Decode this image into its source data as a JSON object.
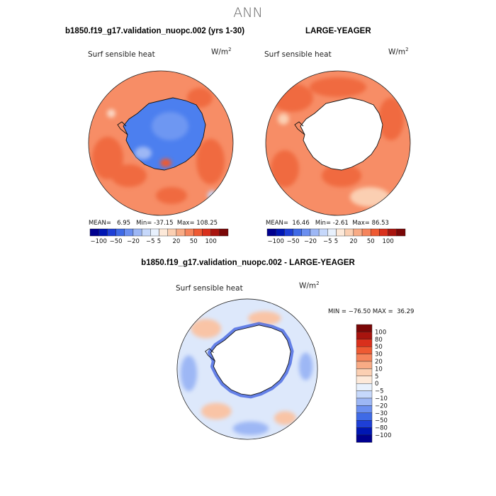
{
  "title": "ANN",
  "chart_data": [
    {
      "type": "heatmap",
      "projection": "south-polar-stereographic",
      "title": "b1850.f19_g17.validation_nuopc.002 (yrs 1-30)",
      "variable": "Surf sensible heat",
      "units": "W/m",
      "units_exp": "2",
      "stats": {
        "mean_label": "MEAN=",
        "mean": "6.95",
        "min_label": "Min=",
        "min": "-37.15",
        "max_label": "Max=",
        "max": "108.25"
      },
      "levels": [
        -100,
        -80,
        -50,
        -30,
        -20,
        -10,
        -5,
        0,
        5,
        10,
        20,
        30,
        50,
        80,
        100
      ],
      "tick_labels": [
        "−100",
        "−50",
        "−20",
        "−5",
        "5",
        "20",
        "50",
        "100"
      ],
      "colors": [
        "#00008f",
        "#0016b3",
        "#1e3fd6",
        "#3f6ae6",
        "#6b8ff0",
        "#9db7f5",
        "#c6d8fb",
        "#e8f1fd",
        "#fde9d9",
        "#fbcfb2",
        "#f8ab85",
        "#f5845c",
        "#ee5a33",
        "#d9301c",
        "#a8140e",
        "#7a0707"
      ],
      "field": {
        "ocean": "#f78d66",
        "ocean_warm": "#f06a40",
        "ice_sheet": "#4c7fef",
        "ice_core": "#6e97f2"
      }
    },
    {
      "type": "heatmap",
      "projection": "south-polar-stereographic",
      "title": "LARGE-YEAGER",
      "variable": "Surf sensible heat",
      "units": "W/m",
      "units_exp": "2",
      "stats": {
        "mean_label": "MEAN=",
        "mean": "16.46",
        "min_label": "Min=",
        "min": "-2.61",
        "max_label": "Max=",
        "max": "86.53"
      },
      "levels": [
        -100,
        -80,
        -50,
        -30,
        -20,
        -10,
        -5,
        0,
        5,
        10,
        20,
        30,
        50,
        80,
        100
      ],
      "tick_labels": [
        "−100",
        "−50",
        "−20",
        "−5",
        "5",
        "20",
        "50",
        "100"
      ],
      "colors": [
        "#00008f",
        "#0016b3",
        "#1e3fd6",
        "#3f6ae6",
        "#6b8ff0",
        "#9db7f5",
        "#c6d8fb",
        "#e8f1fd",
        "#fde9d9",
        "#fbcfb2",
        "#f8ab85",
        "#f5845c",
        "#ee5a33",
        "#d9301c",
        "#a8140e",
        "#7a0707"
      ],
      "field": {
        "ocean": "#f78d66",
        "ocean_warm": "#f06a40",
        "land": "#ffffff"
      }
    },
    {
      "type": "heatmap",
      "projection": "south-polar-stereographic",
      "title": "b1850.f19_g17.validation_nuopc.002 - LARGE-YEAGER",
      "variable": "Surf sensible heat",
      "units": "W/m",
      "units_exp": "2",
      "stats": {
        "min_label": "MIN =",
        "min": "−76.50",
        "max_label": "MAX =",
        "max": "36.29"
      },
      "levels": [
        -100,
        -80,
        -50,
        -30,
        -20,
        -10,
        -5,
        0,
        5,
        10,
        20,
        30,
        50,
        80,
        100
      ],
      "tick_labels": [
        "100",
        "80",
        "50",
        "30",
        "20",
        "10",
        "5",
        "0",
        "−5",
        "−10",
        "−20",
        "−30",
        "−50",
        "−80",
        "−100"
      ],
      "colors": [
        "#00008f",
        "#0016b3",
        "#1e3fd6",
        "#3f6ae6",
        "#6b8ff0",
        "#9db7f5",
        "#c6d8fb",
        "#e8f1fd",
        "#fde9d9",
        "#fbcfb2",
        "#f8ab85",
        "#f5845c",
        "#ee5a33",
        "#d9301c",
        "#a8140e",
        "#7a0707"
      ],
      "field": {
        "ocean": "#dde8fb",
        "coast_neg": "#3b5de0",
        "pos_patch": "#f9c4a6",
        "land": "#ffffff"
      }
    }
  ]
}
